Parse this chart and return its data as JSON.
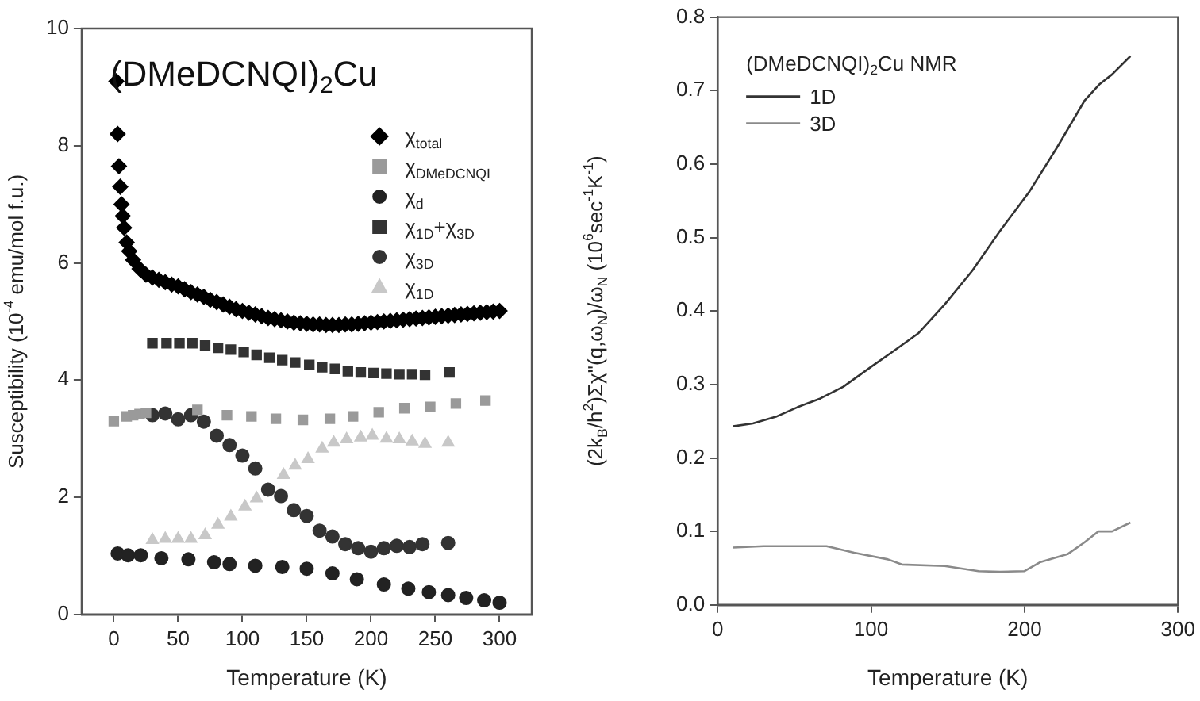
{
  "chart_data": [
    {
      "type": "scatter",
      "xlabel": "Temperature (K)",
      "ylabel": "Susceptibility (10$^{-4}$ emu/mol f.u.)",
      "annotations": [
        "(DMeDCNQI)$_{2}$Cu"
      ],
      "xlim": [
        -25,
        325
      ],
      "xticks": [
        0,
        50,
        100,
        150,
        200,
        250,
        300
      ],
      "ylim": [
        0,
        10
      ],
      "yticks": [
        0,
        2,
        4,
        6,
        8,
        10
      ],
      "grid": false,
      "legend": "top right",
      "series": [
        {
          "name": "χ$_{total}$",
          "color": "#000000",
          "marker": "diamond",
          "x": [
            2,
            3,
            4,
            5,
            6,
            7,
            8,
            10,
            12,
            15,
            20,
            25,
            30,
            35,
            40,
            45,
            50,
            55,
            60,
            65,
            70,
            75,
            80,
            85,
            90,
            95,
            100,
            105,
            110,
            115,
            120,
            125,
            130,
            135,
            140,
            145,
            150,
            155,
            160,
            165,
            170,
            175,
            180,
            185,
            190,
            195,
            200,
            205,
            210,
            215,
            220,
            225,
            230,
            235,
            240,
            245,
            250,
            255,
            260,
            265,
            270,
            275,
            280,
            285,
            290,
            295,
            300
          ],
          "values": [
            9.1,
            8.2,
            7.65,
            7.3,
            7.0,
            6.8,
            6.6,
            6.35,
            6.2,
            6.05,
            5.9,
            5.8,
            5.75,
            5.71,
            5.67,
            5.63,
            5.6,
            5.55,
            5.5,
            5.46,
            5.42,
            5.37,
            5.33,
            5.29,
            5.25,
            5.21,
            5.18,
            5.15,
            5.12,
            5.09,
            5.06,
            5.04,
            5.02,
            5.0,
            4.98,
            4.97,
            4.96,
            4.95,
            4.95,
            4.94,
            4.94,
            4.94,
            4.95,
            4.95,
            4.96,
            4.97,
            4.98,
            4.99,
            5.0,
            5.01,
            5.02,
            5.03,
            5.04,
            5.05,
            5.06,
            5.07,
            5.08,
            5.09,
            5.1,
            5.11,
            5.12,
            5.13,
            5.14,
            5.15,
            5.16,
            5.17,
            5.18
          ]
        },
        {
          "name": "χ$_{DMeDCNQI}$",
          "color": "#9a9a9a",
          "marker": "square",
          "x": [
            0,
            10,
            15,
            20,
            25,
            65,
            88,
            107,
            126,
            147,
            168,
            186,
            206,
            226,
            246,
            266,
            289
          ],
          "values": [
            3.3,
            3.38,
            3.4,
            3.42,
            3.44,
            3.49,
            3.4,
            3.38,
            3.34,
            3.32,
            3.34,
            3.38,
            3.45,
            3.52,
            3.54,
            3.6,
            3.65
          ]
        },
        {
          "name": "χ$_{d}$",
          "color": "#222222",
          "marker": "circle",
          "x": [
            3,
            11,
            21,
            37,
            58,
            78,
            90,
            110,
            131,
            150,
            170,
            189,
            210,
            229,
            245,
            260,
            274,
            288,
            300
          ],
          "values": [
            1.04,
            1.01,
            1.01,
            0.96,
            0.94,
            0.89,
            0.86,
            0.83,
            0.81,
            0.78,
            0.7,
            0.6,
            0.51,
            0.44,
            0.38,
            0.33,
            0.28,
            0.24,
            0.2
          ]
        },
        {
          "name": "χ$_{1D}$+χ$_{3D}$",
          "color": "#333333",
          "marker": "square",
          "x": [
            30,
            41,
            51,
            61,
            71,
            81,
            91,
            101,
            111,
            121,
            131,
            141,
            152,
            162,
            172,
            182,
            192,
            202,
            212,
            222,
            232,
            242,
            261
          ],
          "values": [
            4.63,
            4.63,
            4.63,
            4.63,
            4.59,
            4.55,
            4.52,
            4.48,
            4.43,
            4.38,
            4.34,
            4.3,
            4.26,
            4.22,
            4.19,
            4.15,
            4.13,
            4.12,
            4.11,
            4.1,
            4.1,
            4.09,
            4.13
          ]
        },
        {
          "name": "χ$_{3D}$",
          "color": "#333333",
          "marker": "circle",
          "x": [
            30,
            40,
            50,
            60,
            70,
            80,
            90,
            100,
            110,
            120,
            130,
            140,
            150,
            160,
            170,
            180,
            190,
            200,
            210,
            220,
            230,
            240,
            260
          ],
          "values": [
            3.4,
            3.43,
            3.33,
            3.4,
            3.29,
            3.05,
            2.89,
            2.71,
            2.49,
            2.13,
            2.02,
            1.78,
            1.68,
            1.43,
            1.33,
            1.2,
            1.13,
            1.07,
            1.13,
            1.17,
            1.15,
            1.2,
            1.22
          ]
        },
        {
          "name": "χ$_{1D}$",
          "color": "#c8c8c8",
          "marker": "triangle",
          "x": [
            30,
            40,
            50,
            60,
            71,
            81,
            91,
            102,
            111,
            121,
            132,
            141,
            151,
            162,
            171,
            181,
            192,
            201,
            212,
            222,
            232,
            242,
            260
          ],
          "values": [
            1.27,
            1.29,
            1.29,
            1.29,
            1.35,
            1.53,
            1.67,
            1.84,
            1.98,
            null,
            2.38,
            2.54,
            2.65,
            2.83,
            2.93,
            2.99,
            3.02,
            3.05,
            3.0,
            2.99,
            2.95,
            2.91,
            2.93
          ]
        }
      ]
    },
    {
      "type": "line",
      "xlabel": "Temperature (K)",
      "ylabel": "(2k$_{B}$/h$^{2}$)Σχ\"(q,ω$_{N}$)/ω$_{N}$ (10$^{6}$sec$^{-1}$K$^{-1}$)",
      "legend_title": "(DMeDCNQI)$_{2}$Cu NMR",
      "xlim": [
        0,
        300
      ],
      "xticks": [
        0,
        100,
        200,
        300
      ],
      "ylim": [
        0,
        0.8
      ],
      "yticks": [
        {
          "value": 0,
          "label": "0.0"
        },
        0.1,
        0.2,
        0.3,
        0.4,
        0.5,
        0.6,
        0.7,
        0.8
      ],
      "grid": false,
      "legend": "top left",
      "marker": "none",
      "series": [
        {
          "name": "1D",
          "color": "#333333",
          "x": [
            10,
            23,
            38,
            52,
            67,
            82,
            100,
            115,
            131,
            148,
            166,
            184,
            203,
            221,
            239,
            249,
            257,
            269
          ],
          "values": [
            0.243,
            0.247,
            0.256,
            0.269,
            0.281,
            0.297,
            0.324,
            0.346,
            0.37,
            0.409,
            0.455,
            0.509,
            0.562,
            0.622,
            0.686,
            0.709,
            0.722,
            0.747
          ]
        },
        {
          "name": "3D",
          "color": "#8a8a8a",
          "x": [
            10,
            30,
            49,
            71,
            89,
            111,
            120,
            148,
            170,
            184,
            200,
            210,
            228,
            239,
            248,
            257,
            269
          ],
          "values": [
            0.078,
            0.08,
            0.08,
            0.08,
            0.071,
            0.062,
            0.055,
            0.053,
            0.046,
            0.045,
            0.046,
            0.058,
            0.069,
            0.085,
            0.1,
            0.1,
            0.112
          ]
        }
      ]
    }
  ]
}
